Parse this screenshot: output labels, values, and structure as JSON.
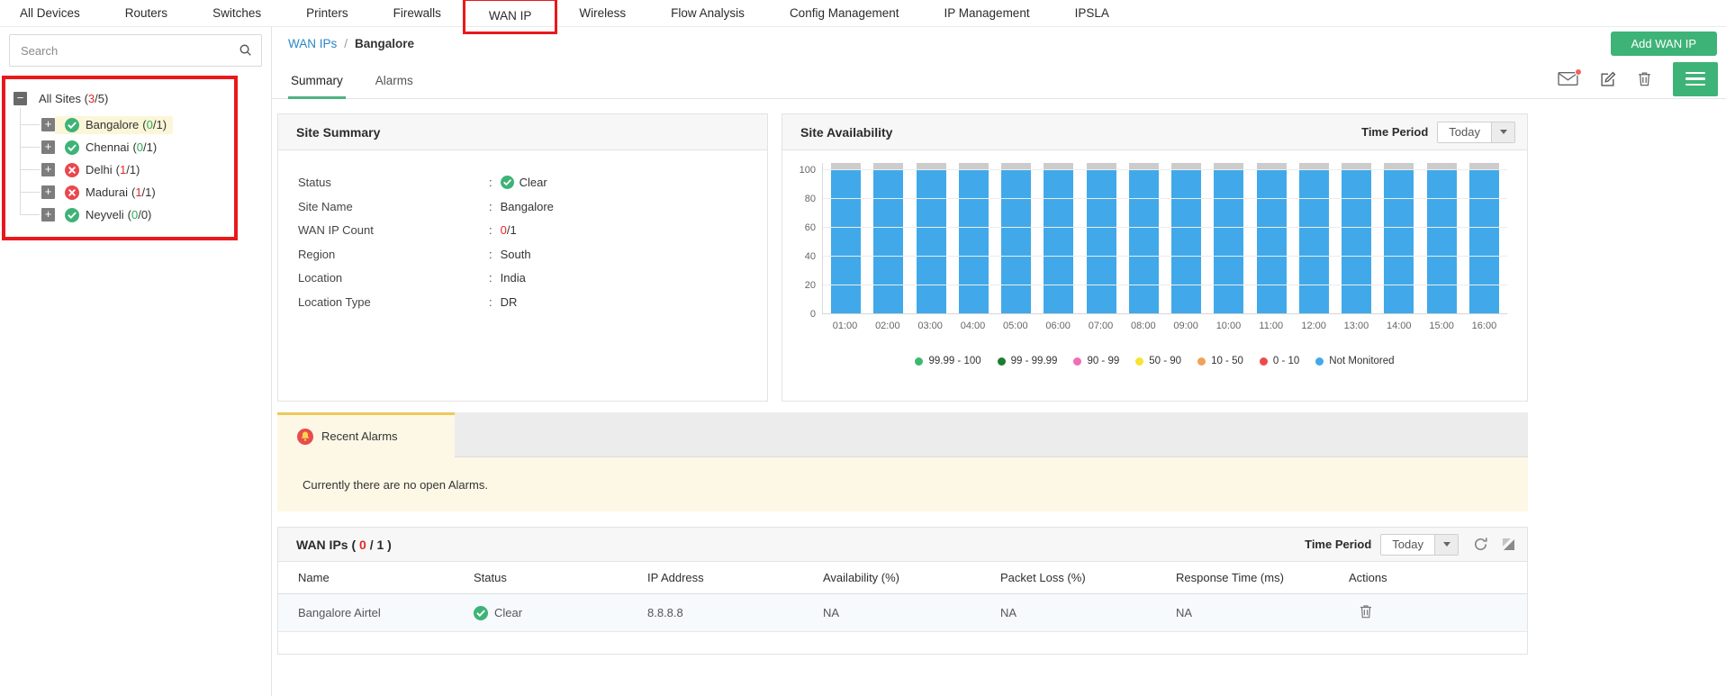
{
  "nav": {
    "items": [
      "All Devices",
      "Routers",
      "Switches",
      "Printers",
      "Firewalls",
      "WAN IP",
      "Wireless",
      "Flow Analysis",
      "Config Management",
      "IP Management",
      "IPSLA"
    ],
    "highlighted": "WAN IP"
  },
  "sidebar": {
    "search_placeholder": "Search",
    "tree": {
      "root": {
        "label": "All Sites",
        "open": "3",
        "total": "5"
      },
      "sites": [
        {
          "name": "Bangalore",
          "open": "0",
          "total": "1",
          "status": "clear",
          "selected": true
        },
        {
          "name": "Chennai",
          "open": "0",
          "total": "1",
          "status": "clear",
          "selected": false
        },
        {
          "name": "Delhi",
          "open": "1",
          "total": "1",
          "status": "down",
          "selected": false
        },
        {
          "name": "Madurai",
          "open": "1",
          "total": "1",
          "status": "down",
          "selected": false
        },
        {
          "name": "Neyveli",
          "open": "0",
          "total": "0",
          "status": "clear",
          "selected": false
        }
      ]
    }
  },
  "header": {
    "breadcrumb": {
      "parent": "WAN IPs",
      "separator": "/",
      "current": "Bangalore"
    },
    "add_button_label": "Add WAN IP",
    "tabs": [
      {
        "label": "Summary",
        "active": true
      },
      {
        "label": "Alarms",
        "active": false
      }
    ]
  },
  "site_summary": {
    "title": "Site Summary",
    "rows": [
      {
        "label": "Status",
        "value": "Clear",
        "icon": "clear"
      },
      {
        "label": "Site Name",
        "value": "Bangalore"
      },
      {
        "label": "WAN IP Count",
        "open": "0",
        "total": "1"
      },
      {
        "label": "Region",
        "value": "South"
      },
      {
        "label": "Location",
        "value": "India"
      },
      {
        "label": "Location Type",
        "value": "DR"
      }
    ]
  },
  "site_availability": {
    "title": "Site Availability",
    "time_period_label": "Time Period",
    "time_period_value": "Today"
  },
  "chart_data": {
    "type": "bar",
    "title": "Site Availability",
    "categories": [
      "01:00",
      "02:00",
      "03:00",
      "04:00",
      "05:00",
      "06:00",
      "07:00",
      "08:00",
      "09:00",
      "10:00",
      "11:00",
      "12:00",
      "13:00",
      "14:00",
      "15:00",
      "16:00"
    ],
    "values": [
      100,
      100,
      100,
      100,
      100,
      100,
      100,
      100,
      100,
      100,
      100,
      100,
      100,
      100,
      100,
      100
    ],
    "series_name": "Not Monitored",
    "bar_color": "#41a9e9",
    "bar_cap_color": "#cccccc",
    "xlabel": "",
    "ylabel": "",
    "ylim": [
      0,
      100
    ],
    "yticks": [
      0,
      20,
      40,
      60,
      80,
      100
    ],
    "grid": "horizontal",
    "legend_position": "bottom",
    "legend": [
      {
        "label": "99.99 - 100",
        "color": "#3cb96e"
      },
      {
        "label": "99 - 99.99",
        "color": "#1d7c31"
      },
      {
        "label": "90 - 99",
        "color": "#ef6eb5"
      },
      {
        "label": "50 - 90",
        "color": "#f5e431"
      },
      {
        "label": "10 - 50",
        "color": "#efa355"
      },
      {
        "label": "0 - 10",
        "color": "#ec4b4b"
      },
      {
        "label": "Not Monitored",
        "color": "#41a9e9"
      }
    ]
  },
  "recent_alarms": {
    "tab_label": "Recent Alarms",
    "message": "Currently there are no open Alarms."
  },
  "wan_ips": {
    "title": "WAN IPs",
    "count_open": "0",
    "count_total": "1",
    "time_period_label": "Time Period",
    "time_period_value": "Today",
    "columns": [
      "Name",
      "Status",
      "IP Address",
      "Availability (%)",
      "Packet Loss (%)",
      "Response Time (ms)",
      "Actions"
    ],
    "rows": [
      {
        "name": "Bangalore Airtel",
        "status": "Clear",
        "ip": "8.8.8.8",
        "availability": "NA",
        "packet_loss": "NA",
        "response_time": "NA"
      }
    ]
  },
  "colors": {
    "accent_green": "#3eb377",
    "status_red": "#e9484e",
    "link_blue": "#2a86c5",
    "count_green": "#2daa53",
    "count_red": "#e02a2a",
    "annotation_red": "#e8191c",
    "bar_blue": "#41a9e9"
  }
}
